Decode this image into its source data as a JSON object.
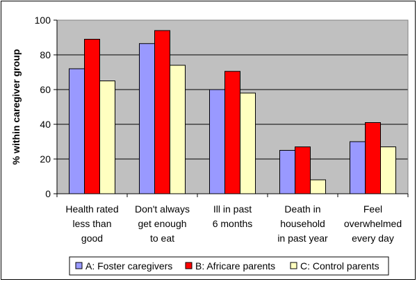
{
  "chart_data": {
    "type": "bar",
    "ylabel": "% within caregiver group",
    "ylim": [
      0,
      100
    ],
    "yticks": [
      0,
      20,
      40,
      60,
      80,
      100
    ],
    "grid": true,
    "legend_position": "bottom",
    "plot_background": "#c0c0c0",
    "categories": [
      [
        "Health rated",
        "less than",
        "good"
      ],
      [
        "Don't always",
        "get enough",
        "to eat"
      ],
      [
        "Ill in past",
        "6 months"
      ],
      [
        "Death in",
        "household",
        "in past year"
      ],
      [
        "Feel",
        "overwhelmed",
        "every day"
      ]
    ],
    "series": [
      {
        "name": "A: Foster caregivers",
        "color": "#9999ff",
        "values": [
          72,
          86.5,
          60,
          25,
          30
        ]
      },
      {
        "name": "B: Africare parents",
        "color": "#ff0000",
        "values": [
          89,
          94,
          70.5,
          27,
          41
        ]
      },
      {
        "name": "C: Control parents",
        "color": "#ffffc0",
        "values": [
          65,
          74,
          58,
          8,
          27
        ]
      }
    ]
  }
}
